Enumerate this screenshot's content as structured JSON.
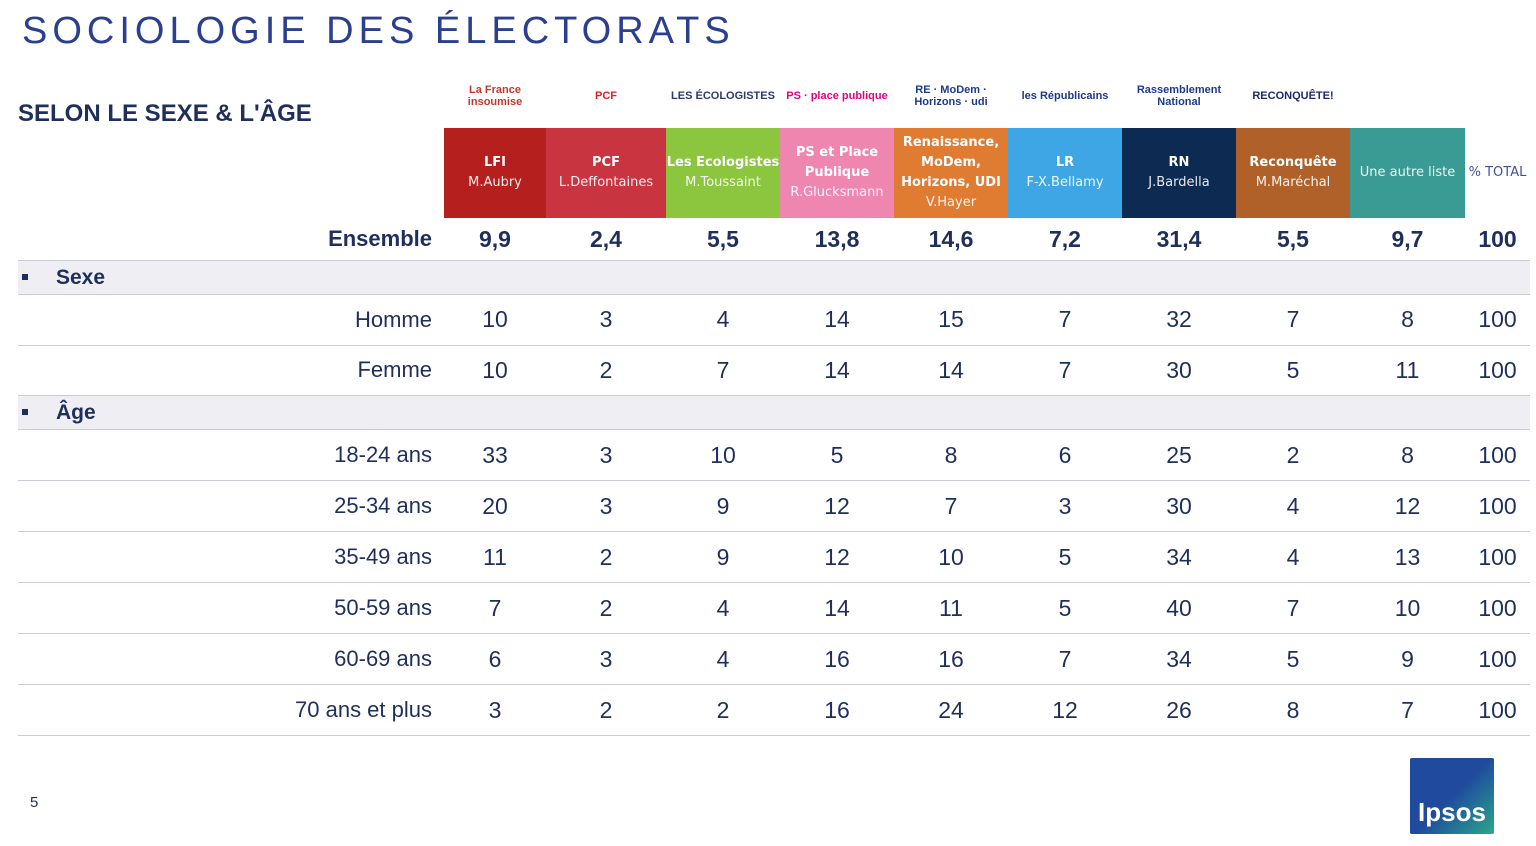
{
  "title": "SOCIOLOGIE DES ÉLECTORATS",
  "subtitle": "SELON LE SEXE & L'ÂGE",
  "logos": [
    {
      "text": "La France insoumise",
      "color": "#c0392b"
    },
    {
      "text": "PCF",
      "color": "#e02020"
    },
    {
      "text": "LES ÉCOLOGISTES",
      "color": "#2e3a6e"
    },
    {
      "text": "PS · place publique",
      "color": "#e6007e"
    },
    {
      "text": "RE · MoDem · Horizons · udi",
      "color": "#1e3a8a"
    },
    {
      "text": "les Républicains",
      "color": "#1e3a8a"
    },
    {
      "text": "Rassemblement National",
      "color": "#1e3a8a"
    },
    {
      "text": "RECONQUÊTE!",
      "color": "#1e2a6e"
    }
  ],
  "columns": [
    {
      "party": "LFI",
      "candidate": "M.Aubry",
      "color": "#b5201e",
      "width": 102
    },
    {
      "party": "PCF",
      "candidate": "L.Deffontaines",
      "color": "#c8343f",
      "width": 120
    },
    {
      "party": "Les Ecologistes",
      "candidate": "M.Toussaint",
      "color": "#8cc63f",
      "width": 114
    },
    {
      "party": "PS et Place Publique",
      "candidate": "R.Glucksmann",
      "color": "#ee86b0",
      "width": 114
    },
    {
      "party": "Renaissance, MoDem, Horizons, UDI",
      "candidate": "V.Hayer",
      "color": "#e07b32",
      "width": 114
    },
    {
      "party": "LR",
      "candidate": "F-X.Bellamy",
      "color": "#3ea6e4",
      "width": 114
    },
    {
      "party": "RN",
      "candidate": "J.Bardella",
      "color": "#0d2a52",
      "width": 114
    },
    {
      "party": "Reconquête",
      "candidate": "M.Maréchal",
      "color": "#b0612a",
      "width": 114
    },
    {
      "party": "",
      "candidate": "Une autre liste",
      "color": "#3a9a94",
      "width": 115
    },
    {
      "party": "",
      "candidate": "% TOTAL",
      "color": "#ffffff",
      "width": 65
    }
  ],
  "ensemble": {
    "label": "Ensemble",
    "values": [
      "9,9",
      "2,4",
      "5,5",
      "13,8",
      "14,6",
      "7,2",
      "31,4",
      "5,5",
      "9,7",
      "100"
    ]
  },
  "sections": [
    {
      "label": "Sexe",
      "rows": [
        {
          "label": "Homme",
          "values": [
            "10",
            "3",
            "4",
            "14",
            "15",
            "7",
            "32",
            "7",
            "8",
            "100"
          ]
        },
        {
          "label": "Femme",
          "values": [
            "10",
            "2",
            "7",
            "14",
            "14",
            "7",
            "30",
            "5",
            "11",
            "100"
          ]
        }
      ]
    },
    {
      "label": "Âge",
      "rows": [
        {
          "label": "18-24 ans",
          "values": [
            "33",
            "3",
            "10",
            "5",
            "8",
            "6",
            "25",
            "2",
            "8",
            "100"
          ]
        },
        {
          "label": "25-34 ans",
          "values": [
            "20",
            "3",
            "9",
            "12",
            "7",
            "3",
            "30",
            "4",
            "12",
            "100"
          ]
        },
        {
          "label": "35-49 ans",
          "values": [
            "11",
            "2",
            "9",
            "12",
            "10",
            "5",
            "34",
            "4",
            "13",
            "100"
          ]
        },
        {
          "label": "50-59 ans",
          "values": [
            "7",
            "2",
            "4",
            "14",
            "11",
            "5",
            "40",
            "7",
            "10",
            "100"
          ]
        },
        {
          "label": "60-69 ans",
          "values": [
            "6",
            "3",
            "4",
            "16",
            "16",
            "7",
            "34",
            "5",
            "9",
            "100"
          ]
        },
        {
          "label": "70 ans et plus",
          "values": [
            "3",
            "2",
            "2",
            "16",
            "24",
            "12",
            "26",
            "8",
            "7",
            "100"
          ]
        }
      ]
    }
  ],
  "page_number": "5",
  "brand": "Ipsos"
}
